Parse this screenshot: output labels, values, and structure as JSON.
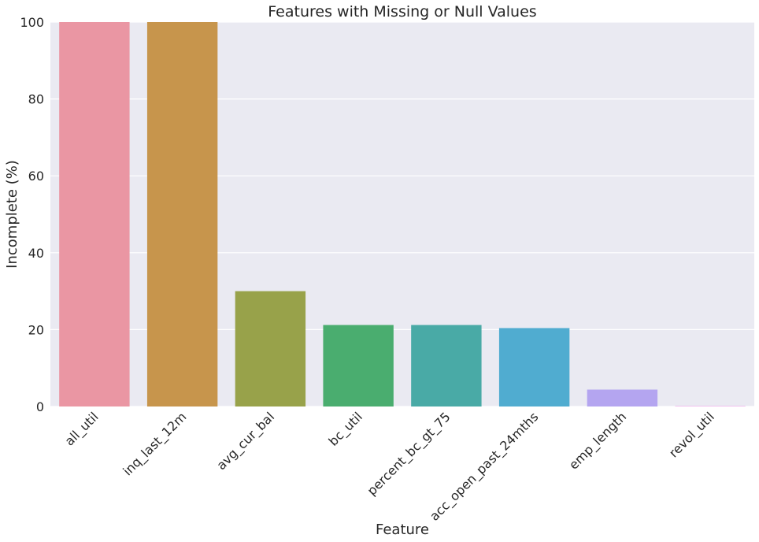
{
  "chart_data": {
    "type": "bar",
    "title": "Features with Missing or Null Values",
    "xlabel": "Feature",
    "ylabel": "Incomplete (%)",
    "categories": [
      "all_util",
      "inq_last_12m",
      "avg_cur_bal",
      "bc_util",
      "percent_bc_gt_75",
      "acc_open_past_24mths",
      "emp_length",
      "revol_util"
    ],
    "values": [
      100,
      100,
      30,
      21.2,
      21.2,
      20.4,
      4.4,
      0.1
    ],
    "colors": [
      "#ea96a3",
      "#c7954c",
      "#98a24a",
      "#4aad6f",
      "#49aaa6",
      "#50acd0",
      "#b4a5f0",
      "#f28fe6"
    ],
    "ylim": [
      0,
      100
    ],
    "yticks": [
      "0",
      "20",
      "40",
      "60",
      "80",
      "100"
    ],
    "grid": true,
    "background": "#eaeaf2"
  }
}
